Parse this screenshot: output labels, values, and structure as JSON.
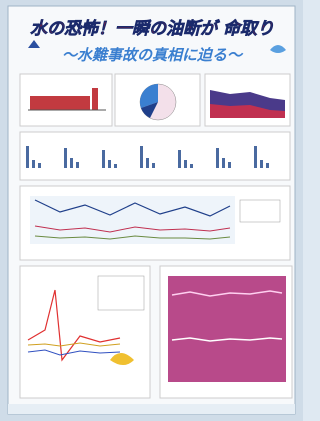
{
  "poster": {
    "title": "水の恐怖！一瞬の油断が 命取り",
    "subtitle": "～水難事故の真相に迫る～"
  }
}
